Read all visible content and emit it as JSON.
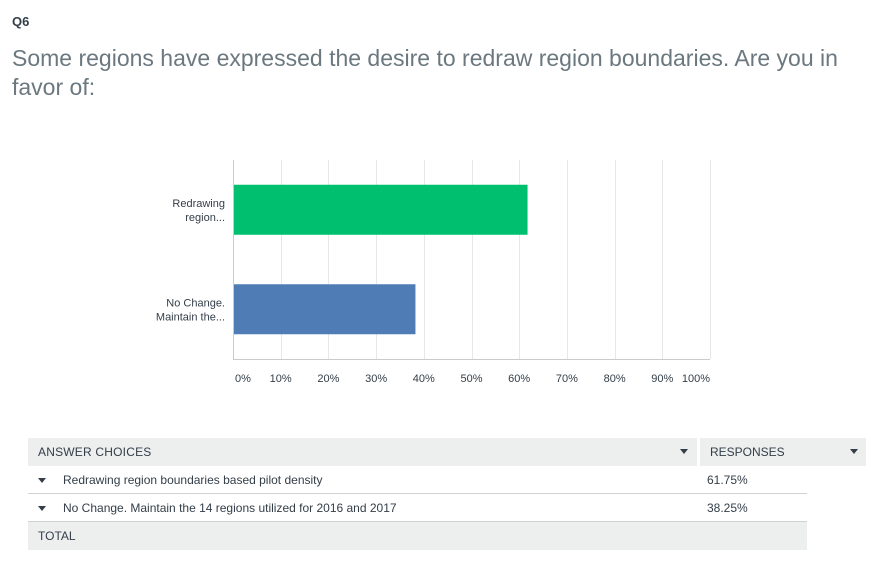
{
  "question": {
    "number": "Q6",
    "text": "Some regions have expressed the desire to redraw region boundaries. Are you in favor of:"
  },
  "chart_data": {
    "type": "bar",
    "orientation": "horizontal",
    "categories": [
      "Redrawing region...",
      "No Change. Maintain the..."
    ],
    "values": [
      61.75,
      38.25
    ],
    "colors": [
      "#00bf6f",
      "#507cb6"
    ],
    "xlim": [
      0,
      100
    ],
    "ticks": [
      "0%",
      "10%",
      "20%",
      "30%",
      "40%",
      "50%",
      "60%",
      "70%",
      "80%",
      "90%",
      "100%"
    ],
    "grid": true
  },
  "table": {
    "header_choices": "ANSWER CHOICES",
    "header_responses": "RESPONSES",
    "rows": [
      {
        "choice": "Redrawing region boundaries based pilot density",
        "percent": "61.75%"
      },
      {
        "choice": "No Change. Maintain the 14 regions utilized for 2016 and 2017",
        "percent": "38.25%"
      }
    ],
    "total_label": "TOTAL"
  }
}
